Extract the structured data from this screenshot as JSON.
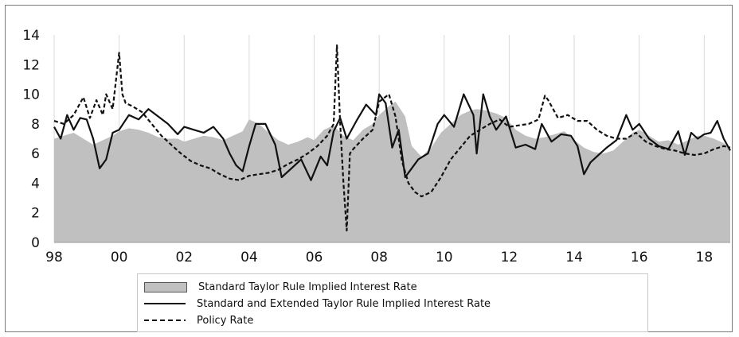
{
  "chart_data": {
    "type": "area",
    "title": "",
    "xlabel": "",
    "ylabel": "",
    "x_range": [
      1998.0,
      2018.8
    ],
    "ylim": [
      0,
      14
    ],
    "y_ticks": [
      0,
      2,
      4,
      6,
      8,
      10,
      12,
      14
    ],
    "x_ticks": [
      {
        "year": 1998,
        "label": "98"
      },
      {
        "year": 2000,
        "label": "00"
      },
      {
        "year": 2002,
        "label": "02"
      },
      {
        "year": 2004,
        "label": "04"
      },
      {
        "year": 2006,
        "label": "06"
      },
      {
        "year": 2008,
        "label": "08"
      },
      {
        "year": 2010,
        "label": "10"
      },
      {
        "year": 2012,
        "label": "12"
      },
      {
        "year": 2014,
        "label": "14"
      },
      {
        "year": 2016,
        "label": "16"
      },
      {
        "year": 2018,
        "label": "18"
      }
    ],
    "grid": "vertical",
    "legend_position": "bottom",
    "series": [
      {
        "name": "Standard Taylor Rule Implied Interest Rate",
        "style": "area",
        "color": "#c0c0c0",
        "x": [
          1998.0,
          1998.3,
          1998.6,
          1998.9,
          1999.2,
          1999.5,
          1999.8,
          2000.0,
          2000.3,
          2000.6,
          2000.9,
          2001.2,
          2001.5,
          2001.8,
          2002.0,
          2002.3,
          2002.6,
          2002.9,
          2003.2,
          2003.5,
          2003.8,
          2004.0,
          2004.3,
          2004.6,
          2004.9,
          2005.2,
          2005.5,
          2005.8,
          2006.0,
          2006.3,
          2006.6,
          2006.9,
          2007.2,
          2007.5,
          2007.8,
          2008.0,
          2008.3,
          2008.5,
          2008.8,
          2009.0,
          2009.3,
          2009.6,
          2009.9,
          2010.2,
          2010.5,
          2010.8,
          2011.0,
          2011.3,
          2011.6,
          2011.9,
          2012.2,
          2012.5,
          2012.8,
          2013.1,
          2013.4,
          2013.7,
          2014.0,
          2014.3,
          2014.6,
          2014.9,
          2015.2,
          2015.5,
          2015.8,
          2016.0,
          2016.3,
          2016.6,
          2016.9,
          2017.2,
          2017.5,
          2017.8,
          2018.0,
          2018.3,
          2018.6,
          2018.8
        ],
        "values": [
          7.0,
          7.2,
          7.4,
          7.0,
          6.6,
          6.9,
          7.2,
          7.5,
          7.7,
          7.6,
          7.4,
          7.1,
          7.0,
          7.0,
          6.8,
          7.0,
          7.2,
          7.1,
          6.9,
          7.2,
          7.5,
          8.3,
          8.0,
          7.4,
          6.9,
          6.6,
          6.8,
          7.1,
          6.9,
          7.6,
          7.9,
          7.2,
          6.9,
          7.6,
          8.0,
          8.6,
          9.2,
          9.5,
          8.5,
          6.5,
          5.8,
          6.4,
          7.4,
          8.0,
          8.6,
          8.9,
          9.0,
          8.9,
          8.7,
          8.4,
          7.6,
          7.2,
          7.0,
          7.1,
          7.3,
          7.5,
          6.9,
          6.4,
          6.1,
          6.0,
          6.2,
          6.8,
          7.4,
          7.6,
          7.2,
          6.8,
          6.9,
          6.6,
          6.9,
          7.2,
          7.2,
          7.0,
          6.7,
          6.3
        ]
      },
      {
        "name": "Standard and Extended Taylor Rule Implied Interest Rate",
        "style": "solid",
        "color": "#111111",
        "x": [
          1998.0,
          1998.2,
          1998.4,
          1998.6,
          1998.8,
          1999.0,
          1999.2,
          1999.4,
          1999.6,
          1999.8,
          2000.0,
          2000.3,
          2000.6,
          2000.9,
          2001.2,
          2001.5,
          2001.8,
          2002.0,
          2002.3,
          2002.6,
          2002.9,
          2003.2,
          2003.4,
          2003.6,
          2003.8,
          2004.0,
          2004.2,
          2004.5,
          2004.8,
          2005.0,
          2005.3,
          2005.6,
          2005.9,
          2006.2,
          2006.4,
          2006.6,
          2006.8,
          2007.0,
          2007.3,
          2007.6,
          2007.9,
          2008.0,
          2008.2,
          2008.4,
          2008.6,
          2008.8,
          2009.0,
          2009.2,
          2009.5,
          2009.8,
          2010.0,
          2010.3,
          2010.6,
          2010.9,
          2011.0,
          2011.2,
          2011.4,
          2011.6,
          2011.9,
          2012.2,
          2012.5,
          2012.8,
          2013.0,
          2013.3,
          2013.6,
          2013.9,
          2014.1,
          2014.3,
          2014.5,
          2014.8,
          2015.0,
          2015.3,
          2015.6,
          2015.8,
          2016.0,
          2016.3,
          2016.6,
          2016.9,
          2017.2,
          2017.4,
          2017.6,
          2017.8,
          2018.0,
          2018.2,
          2018.4,
          2018.6,
          2018.8
        ],
        "values": [
          7.8,
          7.0,
          8.6,
          7.6,
          8.4,
          8.3,
          7.0,
          5.0,
          5.6,
          7.4,
          7.6,
          8.6,
          8.3,
          9.0,
          8.5,
          8.0,
          7.3,
          7.8,
          7.6,
          7.4,
          7.8,
          7.0,
          6.0,
          5.2,
          4.8,
          6.5,
          8.0,
          8.0,
          6.6,
          4.4,
          5.0,
          5.6,
          4.2,
          5.8,
          5.2,
          7.5,
          8.4,
          7.0,
          8.2,
          9.3,
          8.6,
          10.0,
          9.4,
          6.4,
          7.6,
          4.4,
          5.0,
          5.6,
          6.0,
          8.0,
          8.6,
          7.8,
          10.0,
          8.6,
          6.0,
          10.0,
          8.5,
          7.6,
          8.5,
          6.4,
          6.6,
          6.3,
          8.0,
          6.8,
          7.3,
          7.2,
          6.5,
          4.6,
          5.4,
          6.0,
          6.4,
          6.9,
          8.6,
          7.6,
          8.0,
          7.0,
          6.5,
          6.3,
          7.5,
          5.9,
          7.4,
          7.0,
          7.3,
          7.4,
          8.2,
          7.0,
          6.2
        ]
      },
      {
        "name": "Policy Rate",
        "style": "dashed",
        "color": "#111111",
        "x": [
          1998.0,
          1998.3,
          1998.6,
          1998.9,
          1999.1,
          1999.3,
          1999.5,
          1999.6,
          1999.8,
          2000.0,
          2000.1,
          2000.2,
          2000.4,
          2000.7,
          2001.0,
          2001.3,
          2001.6,
          2001.9,
          2002.2,
          2002.5,
          2002.8,
          2003.1,
          2003.4,
          2003.7,
          2004.0,
          2004.3,
          2004.6,
          2004.9,
          2005.2,
          2005.5,
          2005.8,
          2006.1,
          2006.4,
          2006.6,
          2006.7,
          2006.8,
          2006.9,
          2007.0,
          2007.1,
          2007.2,
          2007.5,
          2007.8,
          2008.0,
          2008.3,
          2008.5,
          2008.7,
          2008.9,
          2009.1,
          2009.3,
          2009.6,
          2009.9,
          2010.2,
          2010.5,
          2010.8,
          2011.1,
          2011.4,
          2011.7,
          2012.0,
          2012.3,
          2012.6,
          2012.9,
          2013.1,
          2013.2,
          2013.5,
          2013.8,
          2014.1,
          2014.4,
          2014.7,
          2015.0,
          2015.3,
          2015.6,
          2015.9,
          2016.2,
          2016.5,
          2016.8,
          2017.1,
          2017.4,
          2017.7,
          2018.0,
          2018.3,
          2018.6,
          2018.8
        ],
        "values": [
          8.2,
          8.0,
          8.6,
          9.8,
          8.4,
          9.6,
          8.6,
          10.0,
          9.0,
          12.8,
          10.0,
          9.4,
          9.2,
          8.8,
          8.0,
          7.2,
          6.6,
          6.0,
          5.5,
          5.2,
          5.0,
          4.6,
          4.3,
          4.2,
          4.5,
          4.6,
          4.7,
          4.9,
          5.3,
          5.6,
          6.0,
          6.5,
          7.2,
          8.0,
          13.3,
          8.0,
          4.0,
          0.8,
          6.0,
          6.3,
          7.0,
          7.6,
          9.5,
          10.0,
          8.5,
          5.5,
          4.0,
          3.4,
          3.1,
          3.4,
          4.4,
          5.6,
          6.4,
          7.2,
          7.6,
          8.0,
          8.3,
          7.8,
          7.9,
          8.0,
          8.3,
          9.9,
          9.6,
          8.4,
          8.6,
          8.2,
          8.2,
          7.6,
          7.2,
          7.0,
          7.0,
          7.4,
          6.8,
          6.5,
          6.3,
          6.2,
          6.0,
          5.9,
          6.0,
          6.3,
          6.5,
          6.4
        ]
      }
    ]
  }
}
